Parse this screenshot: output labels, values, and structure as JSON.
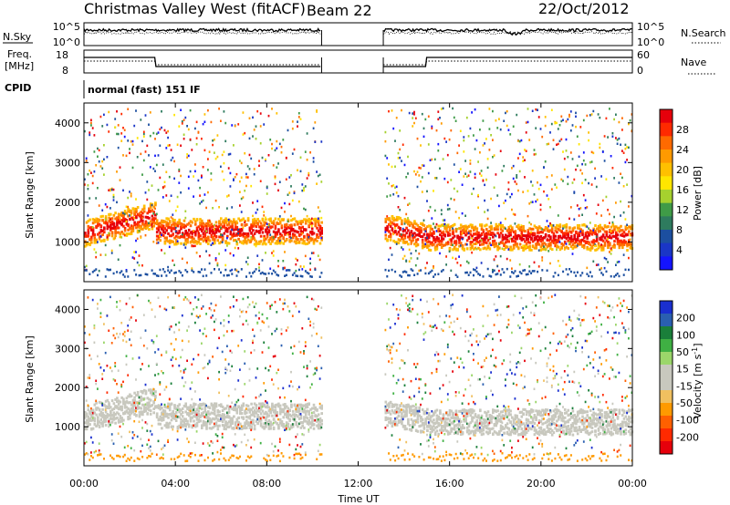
{
  "header": {
    "title": "Christmas Valley West (fitACF)",
    "beam": "Beam 22",
    "date": "22/Oct/2012"
  },
  "top_panels": {
    "nsky_label": "N.Sky",
    "nsky_ticks": [
      "10^5",
      "10^0"
    ],
    "nsearch_label": "N.Search",
    "nsearch_ticks": [
      "10^5",
      "10^0"
    ],
    "freq_label_line1": "Freq.",
    "freq_label_line2": "[MHz]",
    "freq_ticks": [
      "18",
      "8"
    ],
    "nave_label": "Nave",
    "nave_ticks": [
      "60",
      "0"
    ],
    "cpid_label": "CPID",
    "cpid_value": "normal (fast) 151 IF"
  },
  "axes": {
    "x_label": "Time UT",
    "x_ticks": [
      "00:00",
      "04:00",
      "08:00",
      "12:00",
      "16:00",
      "20:00",
      "00:00"
    ],
    "y_label": "Slant Range [km]",
    "y_ticks": [
      "4000",
      "3000",
      "2000",
      "1000"
    ]
  },
  "colorbars": {
    "power": {
      "label": "Power [dB]",
      "ticks": [
        "28",
        "24",
        "20",
        "16",
        "12",
        "8",
        "4"
      ],
      "colors": [
        "#e6000b",
        "#ff2a00",
        "#ff6a00",
        "#ff9a00",
        "#ffc000",
        "#ffe600",
        "#a6d12e",
        "#3f9b47",
        "#2e7b5e",
        "#1c4fa0",
        "#1a36c6",
        "#1414ff"
      ]
    },
    "velocity": {
      "label": "Velocity [m s",
      "label_sup": "-1",
      "label_end": "]",
      "ticks": [
        "200",
        "100",
        "50",
        "15",
        "-15",
        "-50",
        "-100",
        "-200"
      ],
      "colors": [
        "#1a2fcf",
        "#2a5fb0",
        "#1a7f3a",
        "#3fb043",
        "#9bd66a",
        "#c8c8be",
        "#c8c8be",
        "#f0c060",
        "#ff9a00",
        "#ff6000",
        "#ff2a00",
        "#e6000b"
      ]
    }
  },
  "chart_data": [
    {
      "type": "heatmap",
      "title": "Power",
      "xlabel": "Time UT",
      "ylabel": "Slant Range [km]",
      "xlim": [
        0,
        24
      ],
      "ylim": [
        0,
        4500
      ],
      "colorbar_label": "Power [dB]",
      "colorbar_range": [
        0,
        30
      ],
      "data_gaps_hours": [
        [
          10.4,
          13.1
        ]
      ],
      "dominant_band": {
        "range_km": [
          900,
          1800
        ],
        "power_db": [
          16,
          30
        ]
      }
    },
    {
      "type": "heatmap",
      "title": "Velocity",
      "xlabel": "Time UT",
      "ylabel": "Slant Range [km]",
      "xlim": [
        0,
        24
      ],
      "ylim": [
        0,
        4500
      ],
      "colorbar_label": "Velocity [m s-1]",
      "colorbar_range": [
        -200,
        200
      ],
      "data_gaps_hours": [
        [
          10.4,
          13.1
        ]
      ],
      "dominant_band": {
        "range_km": [
          900,
          1800
        ],
        "velocity_ms": [
          -15,
          15
        ]
      }
    }
  ]
}
